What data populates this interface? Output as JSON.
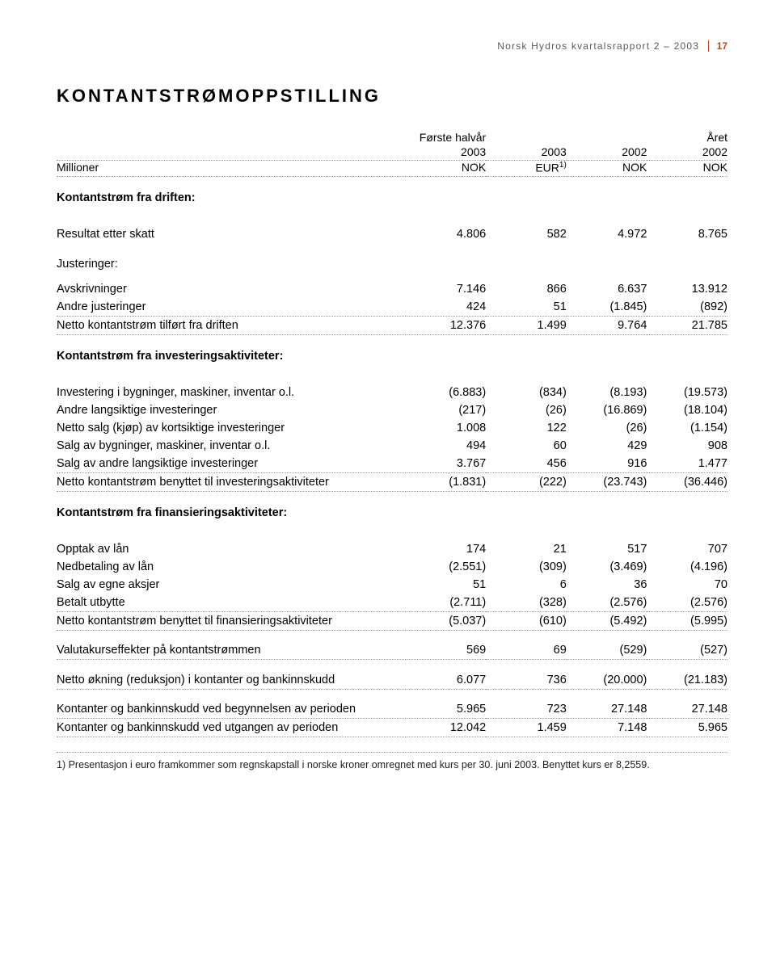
{
  "header": {
    "text": "Norsk Hydros kvartalsrapport 2 – 2003",
    "page": "17"
  },
  "title": "KONTANTSTRØMOPPSTILLING",
  "columns": {
    "super1": [
      "",
      "Første halvår",
      "",
      "",
      "Året"
    ],
    "super2": [
      "",
      "2003",
      "2003",
      "2002",
      "2002"
    ],
    "units_label": "Millioner",
    "units": [
      "NOK",
      "EUR",
      "NOK",
      "NOK"
    ],
    "eur_note": "1)"
  },
  "sections": [
    {
      "title": "Kontantstrøm fra driften:",
      "rows": [
        {
          "label": "Resultat etter skatt",
          "v": [
            "4.806",
            "582",
            "4.972",
            "8.765"
          ],
          "dotted": false,
          "gapBefore": true
        }
      ]
    },
    {
      "title": "Justeringer:",
      "titleBold": false,
      "rows": [
        {
          "label": "Avskrivninger",
          "v": [
            "7.146",
            "866",
            "6.637",
            "13.912"
          ],
          "dotted": false
        },
        {
          "label": "Andre justeringer",
          "v": [
            "424",
            "51",
            "(1.845)",
            "(892)"
          ],
          "dotted": true
        },
        {
          "label": "Netto kontantstrøm tilført fra driften",
          "v": [
            "12.376",
            "1.499",
            "9.764",
            "21.785"
          ],
          "dotted": true
        }
      ]
    },
    {
      "title": "Kontantstrøm fra investeringsaktiviteter:",
      "rows": [
        {
          "label": "Investering i bygninger, maskiner, inventar o.l.",
          "v": [
            "(6.883)",
            "(834)",
            "(8.193)",
            "(19.573)"
          ],
          "dotted": false,
          "gapBefore": true
        },
        {
          "label": "Andre langsiktige investeringer",
          "v": [
            "(217)",
            "(26)",
            "(16.869)",
            "(18.104)"
          ],
          "dotted": false
        },
        {
          "label": "Netto salg (kjøp) av kortsiktige investeringer",
          "v": [
            "1.008",
            "122",
            "(26)",
            "(1.154)"
          ],
          "dotted": false
        },
        {
          "label": "Salg av bygninger, maskiner, inventar o.l.",
          "v": [
            "494",
            "60",
            "429",
            "908"
          ],
          "dotted": false
        },
        {
          "label": "Salg av andre langsiktige investeringer",
          "v": [
            "3.767",
            "456",
            "916",
            "1.477"
          ],
          "dotted": true
        },
        {
          "label": "Netto kontantstrøm benyttet til investeringsaktiviteter",
          "v": [
            "(1.831)",
            "(222)",
            "(23.743)",
            "(36.446)"
          ],
          "dotted": true
        }
      ]
    },
    {
      "title": "Kontantstrøm fra finansieringsaktiviteter:",
      "rows": [
        {
          "label": "Opptak av lån",
          "v": [
            "174",
            "21",
            "517",
            "707"
          ],
          "dotted": false,
          "gapBefore": true
        },
        {
          "label": "Nedbetaling av lån",
          "v": [
            "(2.551)",
            "(309)",
            "(3.469)",
            "(4.196)"
          ],
          "dotted": false
        },
        {
          "label": "Salg av egne aksjer",
          "v": [
            "51",
            "6",
            "36",
            "70"
          ],
          "dotted": false
        },
        {
          "label": "Betalt utbytte",
          "v": [
            "(2.711)",
            "(328)",
            "(2.576)",
            "(2.576)"
          ],
          "dotted": true
        },
        {
          "label": "Netto kontantstrøm benyttet til finansieringsaktiviteter",
          "v": [
            "(5.037)",
            "(610)",
            "(5.492)",
            "(5.995)"
          ],
          "dotted": true
        }
      ]
    },
    {
      "rows": [
        {
          "label": "Valutakurseffekter på kontantstrømmen",
          "v": [
            "569",
            "69",
            "(529)",
            "(527)"
          ],
          "dotted": true,
          "gapBefore": true
        }
      ]
    },
    {
      "rows": [
        {
          "label": "Netto økning (reduksjon) i kontanter og bankinnskudd",
          "v": [
            "6.077",
            "736",
            "(20.000)",
            "(21.183)"
          ],
          "dotted": true,
          "gapBefore": true
        }
      ]
    },
    {
      "rows": [
        {
          "label": "Kontanter og bankinnskudd ved begynnelsen av perioden",
          "v": [
            "5.965",
            "723",
            "27.148",
            "27.148"
          ],
          "dotted": true,
          "gapBefore": true
        },
        {
          "label": "Kontanter og bankinnskudd ved utgangen av perioden",
          "v": [
            "12.042",
            "1.459",
            "7.148",
            "5.965"
          ],
          "dotted": true
        }
      ]
    }
  ],
  "footnote": "1) Presentasjon i euro framkommer som regnskapstall i norske kroner omregnet med kurs per 30. juni 2003. Benyttet kurs er 8,2559."
}
